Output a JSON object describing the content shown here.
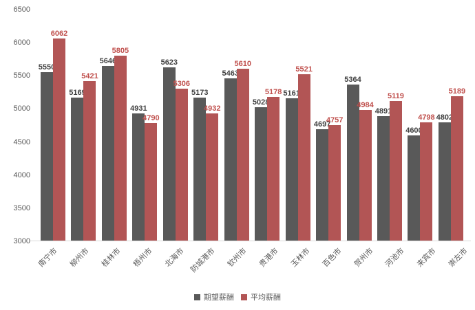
{
  "chart_data": {
    "type": "bar",
    "title": "",
    "categories": [
      "南宁市",
      "柳州市",
      "桂林市",
      "梧州市",
      "北海市",
      "防城港市",
      "钦州市",
      "贵港市",
      "玉林市",
      "百色市",
      "贺州市",
      "河池市",
      "来宾市",
      "崇左市"
    ],
    "series": [
      {
        "name": "期望薪酬",
        "color": "#595959",
        "label_color": "#404040",
        "values": [
          5550,
          5169,
          5646,
          4931,
          5623,
          5173,
          5463,
          5028,
          5161,
          4697,
          5364,
          4891,
          4600,
          4802
        ]
      },
      {
        "name": "平均薪酬",
        "color": "#b25555",
        "label_color": "#c0504d",
        "values": [
          6062,
          5421,
          5805,
          4790,
          5306,
          4932,
          5610,
          5178,
          5521,
          4757,
          4984,
          5119,
          4798,
          5189
        ]
      }
    ],
    "ylim": [
      3000,
      6500
    ],
    "ytick_step": 500,
    "yticks": [
      6500,
      6000,
      5500,
      5000,
      4500,
      4000,
      3500,
      3000
    ],
    "grid": false,
    "legend_position": "bottom",
    "axis_line_color": "#d9d9d9",
    "axis_text_color": "#595959"
  }
}
